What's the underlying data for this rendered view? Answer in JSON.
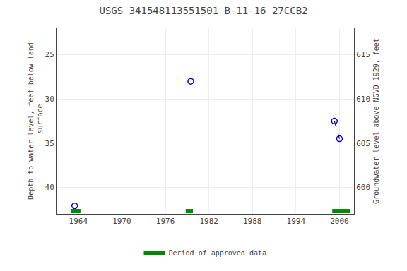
{
  "chart_data": {
    "type": "scatter",
    "title": "USGS 341548113551501 B-11-16 27CCB2",
    "ylabel": "Depth to water level, feet below land\n surface",
    "y2label": "Groundwater level above NGVD 1929, feet",
    "xlim": [
      1961,
      2002
    ],
    "xticks": [
      1964,
      1970,
      1976,
      1982,
      1988,
      1994,
      2000
    ],
    "ylim": [
      43.0,
      22.0
    ],
    "yticks": [
      25,
      30,
      35,
      40
    ],
    "y2lim": [
      597.0,
      618.0
    ],
    "y2ticks": [
      600,
      605,
      610,
      615
    ],
    "grid": true,
    "legend": "bottom",
    "series": [
      {
        "type": "scatter",
        "marker": "open circle",
        "color": "#0000cc",
        "x": [
          1963.5,
          1979.5,
          1999.3,
          2000.0
        ],
        "values": [
          42.1,
          28.0,
          32.5,
          34.5
        ]
      },
      {
        "type": "line",
        "line_style": "dashed",
        "color": "#0000cc",
        "x": [
          1999.3,
          2000.0
        ],
        "values": [
          32.5,
          34.5
        ]
      },
      {
        "type": "period",
        "name": "Period of approved data",
        "color": "#008800",
        "periods": [
          [
            1963.0,
            1964.3
          ],
          [
            1978.8,
            1979.8
          ],
          [
            1999.0,
            2001.5
          ]
        ]
      }
    ]
  }
}
